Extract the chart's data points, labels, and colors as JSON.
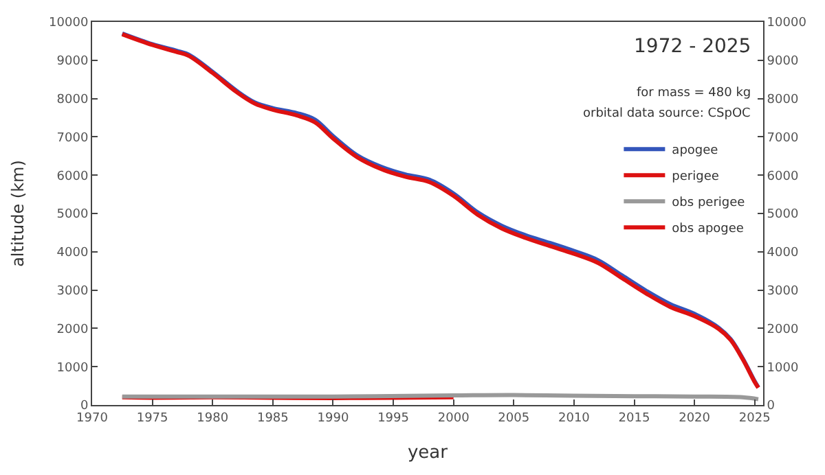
{
  "chart_data": {
    "type": "line",
    "title": "1972 - 2025",
    "xlabel": "year",
    "ylabel": "altitude (km)",
    "annotations": [
      "for mass = 480 kg",
      "orbital data source: CSpOC"
    ],
    "xlim": [
      1970,
      2025.7
    ],
    "xticks": [
      1970,
      1975,
      1980,
      1985,
      1990,
      1995,
      2000,
      2005,
      2010,
      2015,
      2020,
      2025
    ],
    "ylim": [
      0,
      10000
    ],
    "yticks": [
      0,
      1000,
      2000,
      3000,
      4000,
      5000,
      6000,
      7000,
      8000,
      9000,
      10000
    ],
    "y2lim": [
      0,
      10000
    ],
    "y2ticks": [
      0,
      1000,
      2000,
      3000,
      4000,
      5000,
      6000,
      7000,
      8000,
      9000,
      10000
    ],
    "legend": "top right",
    "marker": "none",
    "line_style": "solid",
    "series": [
      {
        "name": "apogee",
        "color": "#3355bb",
        "x": [
          1972.5,
          1975,
          1977,
          1978,
          1980,
          1982,
          1983.5,
          1985,
          1987,
          1988.5,
          1990,
          1992,
          1994,
          1996,
          1998,
          2000,
          2002,
          2004,
          2006,
          2008,
          2010,
          2012,
          2014,
          2016,
          2018,
          2020,
          2022,
          2023,
          2024,
          2025,
          2025.3
        ],
        "values": [
          9700,
          9420,
          9250,
          9150,
          8700,
          8200,
          7900,
          7750,
          7620,
          7450,
          7020,
          6520,
          6220,
          6020,
          5880,
          5520,
          5030,
          4680,
          4430,
          4230,
          4020,
          3780,
          3380,
          2980,
          2630,
          2380,
          2020,
          1720,
          1220,
          620,
          460
        ]
      },
      {
        "name": "perigee",
        "color": "#dd1111",
        "x": [
          1972.5,
          1975,
          1980,
          1985,
          1990,
          1995,
          2000
        ],
        "values": [
          200,
          190,
          200,
          190,
          180,
          190,
          200
        ]
      },
      {
        "name": "obs perigee",
        "color": "#999999",
        "x": [
          1972.5,
          1980,
          1990,
          2000,
          2005,
          2010,
          2015,
          2020,
          2024,
          2025.3
        ],
        "values": [
          220,
          220,
          220,
          250,
          260,
          240,
          230,
          220,
          200,
          150
        ]
      },
      {
        "name": "obs apogee",
        "color": "#dd1111",
        "x": [
          1972.5,
          1975,
          1977,
          1978,
          1980,
          1982,
          1983.5,
          1985,
          1987,
          1988.5,
          1990,
          1992,
          1994,
          1996,
          1998,
          2000,
          2002,
          2004,
          2006,
          2008,
          2010,
          2012,
          2014,
          2016,
          2018,
          2020,
          2022,
          2023,
          2024,
          2025,
          2025.3
        ],
        "values": [
          9680,
          9400,
          9220,
          9120,
          8670,
          8170,
          7870,
          7710,
          7560,
          7380,
          6960,
          6470,
          6160,
          5960,
          5820,
          5460,
          4970,
          4610,
          4360,
          4150,
          3950,
          3710,
          3310,
          2910,
          2560,
          2320,
          1990,
          1700,
          1200,
          600,
          450
        ]
      }
    ]
  }
}
